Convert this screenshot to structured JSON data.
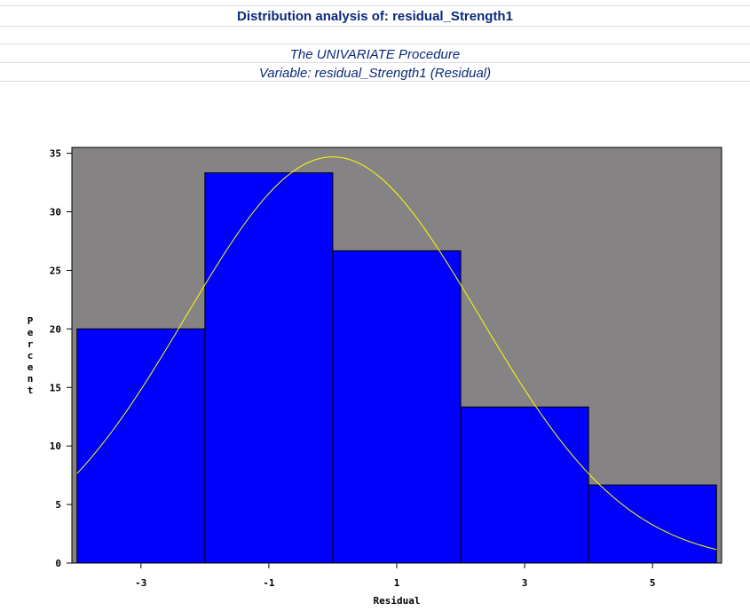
{
  "header": {
    "title": "Distribution analysis of: residual_Strength1",
    "procedure": "The UNIVARIATE Procedure",
    "variable": "Variable: residual_Strength1 (Residual)"
  },
  "chart_data": {
    "type": "bar",
    "xlabel": "Residual",
    "ylabel": "Percent",
    "categories": [
      "-3",
      "-1",
      "1",
      "3",
      "5"
    ],
    "bin_edges": [
      -4,
      -2,
      0,
      2,
      4,
      6
    ],
    "values": [
      20,
      33.33,
      26.67,
      13.33,
      6.67
    ],
    "xlim": [
      -4.08,
      6.08
    ],
    "ylim": [
      0,
      35.5
    ],
    "y_ticks": [
      0,
      5,
      10,
      15,
      20,
      25,
      30,
      35
    ],
    "x_ticks": [
      -3,
      -1,
      1,
      3,
      5
    ],
    "normal_curve": {
      "mean": 0,
      "std": 2.3,
      "scale": 200
    },
    "colors": {
      "bar": "#0000ff",
      "plot_background": "#858384",
      "curve": "#ffff00"
    }
  }
}
